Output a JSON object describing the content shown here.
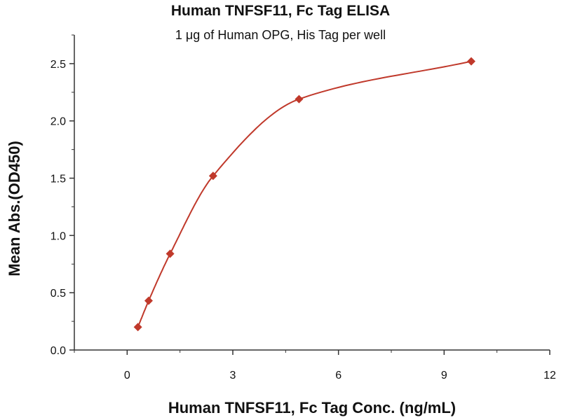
{
  "chart_data": {
    "type": "scatter",
    "title": "Human TNFSF11, Fc Tag ELISA",
    "subtitle": "1 μg of Human OPG, His Tag per well",
    "xlabel": "Human TNFSF11, Fc Tag Conc. (ng/mL)",
    "ylabel": "Mean Abs.(OD450)",
    "xlim": [
      -1.5,
      12
    ],
    "ylim": [
      0,
      2.75
    ],
    "x_ticks": [
      0,
      3,
      6,
      9,
      12
    ],
    "x_tick_labels": [
      "0",
      "3",
      "6",
      "9",
      "12"
    ],
    "y_ticks": [
      0,
      0.5,
      1.0,
      1.5,
      2.0,
      2.5
    ],
    "y_tick_labels": [
      "0.0",
      "0.5",
      "1.0",
      "1.5",
      "2.0",
      "2.5"
    ],
    "grid": false,
    "series": [
      {
        "x": [
          0.305,
          0.61,
          1.22,
          2.44,
          4.88,
          9.77
        ],
        "y": [
          0.2,
          0.43,
          0.84,
          1.52,
          2.19,
          2.52
        ],
        "marker": "diamond",
        "fit": "curve"
      }
    ],
    "color": "#c0392b"
  }
}
